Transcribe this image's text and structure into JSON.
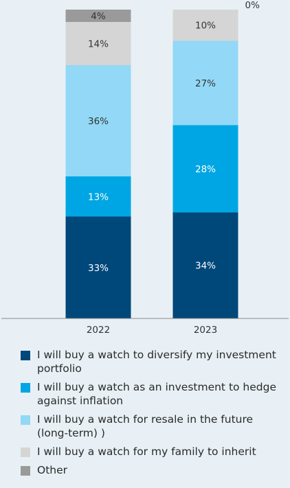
{
  "chart_data": {
    "type": "bar",
    "stacked": true,
    "categories": [
      "2022",
      "2023"
    ],
    "series": [
      {
        "name": "I will buy a watch to diversify my investment portfolio",
        "color": "#00477a",
        "values": [
          33,
          34
        ]
      },
      {
        "name": "I will buy a watch as an investment to hedge against inflation",
        "color": "#00a6e3",
        "values": [
          13,
          28
        ]
      },
      {
        "name": "I will buy a watch for resale in the future (long-term) )",
        "color": "#93d8f6",
        "values": [
          36,
          27
        ]
      },
      {
        "name": "I will buy a watch for my family to inherit",
        "color": "#d5d5d5",
        "values": [
          14,
          10
        ]
      },
      {
        "name": "Other",
        "color": "#9a9a9a",
        "values": [
          4,
          0
        ]
      }
    ],
    "value_suffix": "%",
    "legend_position": "bottom",
    "grid": false
  }
}
